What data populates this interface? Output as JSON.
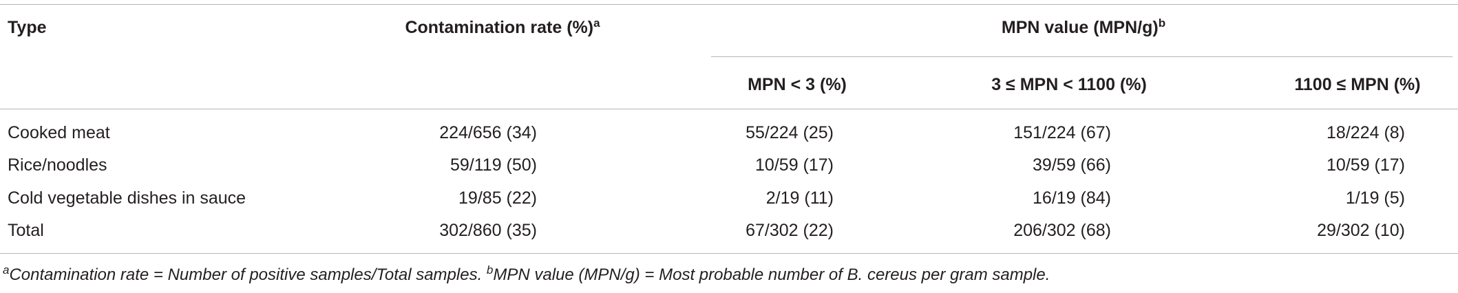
{
  "table": {
    "header": {
      "type": "Type",
      "contamination": {
        "text": "Contamination rate (%)",
        "sup": "a"
      },
      "mpn": {
        "text": "MPN value (MPN/g)",
        "sup": "b"
      },
      "subheaders": [
        "MPN < 3 (%)",
        "3 ≤ MPN < 1100 (%)",
        "1100 ≤ MPN (%)"
      ]
    },
    "rows": [
      [
        "Cooked meat",
        "224/656 (34)",
        "55/224 (25)",
        "151/224 (67)",
        "18/224 (8)"
      ],
      [
        "Rice/noodles",
        "59/119 (50)",
        "10/59 (17)",
        "39/59 (66)",
        "10/59 (17)"
      ],
      [
        "Cold vegetable dishes in sauce",
        "19/85 (22)",
        "2/19 (11)",
        "16/19 (84)",
        "1/19 (5)"
      ],
      [
        "Total",
        "302/860 (35)",
        "67/302 (22)",
        "206/302 (68)",
        "29/302 (10)"
      ]
    ]
  },
  "footnote": [
    {
      "sup": "a",
      "text": "Contamination rate = Number of positive samples/Total samples."
    },
    {
      "sup": "b",
      "text": "MPN value (MPN/g) = Most probable number of B. cereus per gram sample."
    }
  ]
}
